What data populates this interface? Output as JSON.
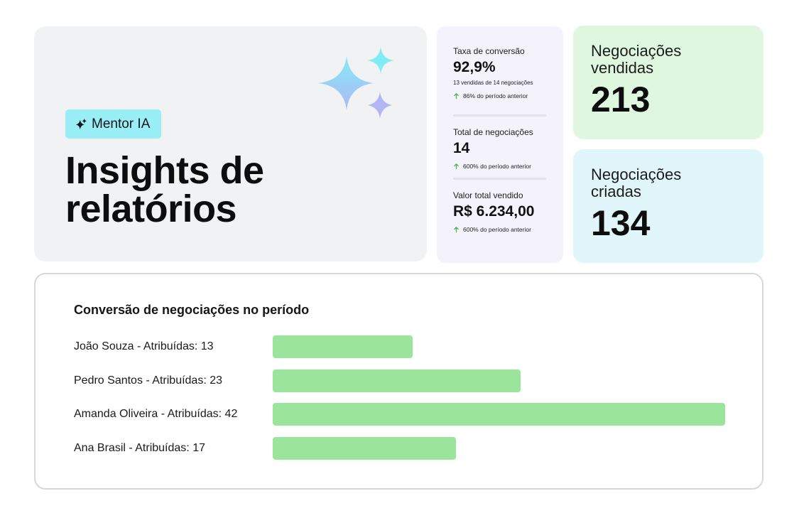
{
  "hero": {
    "badge_label": "Mentor IA",
    "title_line1": "Insights de",
    "title_line2": "relatórios"
  },
  "stats": [
    {
      "label": "Taxa de conversão",
      "value": "92,9%",
      "sub": "13 vendidas de 14 negociações",
      "delta": "86% do período anterior"
    },
    {
      "label": "Total de negociações",
      "value": "14",
      "delta": "600% do período anterior"
    },
    {
      "label": "Valor total vendido",
      "value": "R$ 6.234,00",
      "delta": "600% do período anterior"
    }
  ],
  "kpis": {
    "sold": {
      "label": "Negociações vendidas",
      "value": "213"
    },
    "created": {
      "label": "Negociações criadas",
      "value": "134"
    }
  },
  "chart_data": {
    "type": "bar",
    "orientation": "horizontal",
    "title": "Conversão de negociações no período",
    "categories": [
      "João Souza - Atribuídas: 13",
      "Pedro Santos - Atribuídas: 23",
      "Amanda Oliveira - Atribuídas: 42",
      "Ana Brasil - Atribuídas: 17"
    ],
    "values": [
      13,
      23,
      42,
      17
    ],
    "bar_color": "#9ae49b",
    "grid": false
  },
  "colors": {
    "badge": "#9aeef5",
    "kpi_sold_bg": "#e0f7df",
    "kpi_created_bg": "#e0f6fb",
    "stats_bg": "#f4f3fc",
    "delta_up": "#3cb94a",
    "sparkle_gradient_top": "#80ecf6",
    "sparkle_gradient_bottom": "#b2b6f5"
  },
  "icons": {
    "badge_icon": "sparkles-icon",
    "delta_icon": "arrow-up-icon",
    "decor": "sparkles-decoration-icon"
  }
}
